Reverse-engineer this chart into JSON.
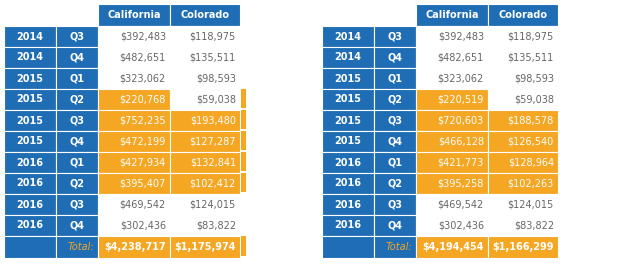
{
  "header_bg": "#1F6DB5",
  "header_text": "#FFFFFF",
  "row_label_bg": "#1F6DB5",
  "row_label_text": "#FFFFFF",
  "highlight_bg": "#F5A623",
  "highlight_text": "#FFFFFF",
  "normal_bg": "#FFFFFF",
  "normal_text": "#666666",
  "total_row_bg": "#1F6DB5",
  "border_color": "#FFFFFF",
  "fig_bg": "#FFFFFF",
  "table1": {
    "rows": [
      [
        "2014",
        "Q3",
        "$392,483",
        "$118,975",
        false,
        false
      ],
      [
        "2014",
        "Q4",
        "$482,651",
        "$135,511",
        false,
        false
      ],
      [
        "2015",
        "Q1",
        "$323,062",
        "$98,593",
        false,
        false
      ],
      [
        "2015",
        "Q2",
        "$220,768",
        "$59,038",
        true,
        false
      ],
      [
        "2015",
        "Q3",
        "$752,235",
        "$193,480",
        true,
        true
      ],
      [
        "2015",
        "Q4",
        "$472,199",
        "$127,287",
        true,
        true
      ],
      [
        "2016",
        "Q1",
        "$427,934",
        "$132,841",
        true,
        true
      ],
      [
        "2016",
        "Q2",
        "$395,407",
        "$102,412",
        true,
        true
      ],
      [
        "2016",
        "Q3",
        "$469,542",
        "$124,015",
        false,
        false
      ],
      [
        "2016",
        "Q4",
        "$302,436",
        "$83,822",
        false,
        false
      ]
    ],
    "total_cal": "$4,238,717",
    "total_col": "$1,175,974",
    "sep_highlights": [
      false,
      false,
      false,
      true,
      true,
      true,
      true,
      true,
      false,
      false,
      true
    ]
  },
  "table2": {
    "rows": [
      [
        "2014",
        "Q3",
        "$392,483",
        "$118,975",
        false,
        false
      ],
      [
        "2014",
        "Q4",
        "$482,651",
        "$135,511",
        false,
        false
      ],
      [
        "2015",
        "Q1",
        "$323,062",
        "$98,593",
        false,
        false
      ],
      [
        "2015",
        "Q2",
        "$220,519",
        "$59,038",
        true,
        false
      ],
      [
        "2015",
        "Q3",
        "$720,603",
        "$188,578",
        true,
        true
      ],
      [
        "2015",
        "Q4",
        "$466,128",
        "$126,540",
        true,
        true
      ],
      [
        "2016",
        "Q1",
        "$421,773",
        "$128,964",
        true,
        true
      ],
      [
        "2016",
        "Q2",
        "$395,258",
        "$102,263",
        true,
        true
      ],
      [
        "2016",
        "Q3",
        "$469,542",
        "$124,015",
        false,
        false
      ],
      [
        "2016",
        "Q4",
        "$302,436",
        "$83,822",
        false,
        false
      ]
    ],
    "total_cal": "$4,194,454",
    "total_col": "$1,166,299"
  }
}
